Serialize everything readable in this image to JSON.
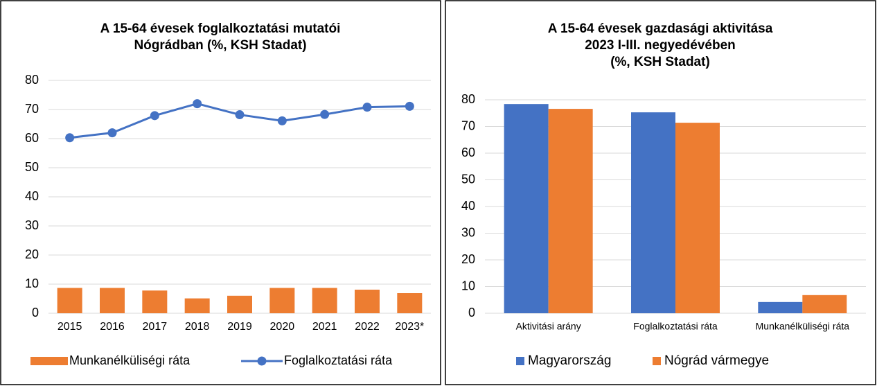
{
  "chart_data": [
    {
      "type": "combo",
      "title": [
        "A 15-64 évesek foglalkoztatási mutatói",
        "Nógrádban (%, KSH Stadat)"
      ],
      "categories": [
        "2015",
        "2016",
        "2017",
        "2018",
        "2019",
        "2020",
        "2021",
        "2022",
        "2023*"
      ],
      "series": [
        {
          "name": "Munkanélküliségi ráta",
          "type": "bar",
          "color": "#ed7d31",
          "values": [
            8.7,
            8.7,
            7.8,
            5.1,
            6.0,
            8.7,
            8.7,
            8.1,
            6.9
          ]
        },
        {
          "name": "Foglalkoztatási ráta",
          "type": "line",
          "color": "#4472c4",
          "values": [
            60.3,
            62.0,
            67.9,
            72.0,
            68.2,
            66.1,
            68.3,
            70.8,
            71.1
          ]
        }
      ],
      "ylim": [
        0,
        80
      ],
      "yticks": [
        0,
        10,
        20,
        30,
        40,
        50,
        60,
        70,
        80
      ],
      "grid": true,
      "legend": "bottom"
    },
    {
      "type": "bar",
      "title": [
        "A 15-64 évesek gazdasági aktivitása",
        "2023 I-III.  negyedévében",
        "(%, KSH Stadat)"
      ],
      "categories": [
        "Aktivitási arány",
        "Foglalkoztatási ráta",
        "Munkanélküliségi ráta"
      ],
      "series": [
        {
          "name": "Magyarország",
          "color": "#4472c4",
          "values": [
            78.4,
            75.3,
            4.2
          ]
        },
        {
          "name": "Nógrád vármegye",
          "color": "#ed7d31",
          "values": [
            76.6,
            71.4,
            6.8
          ]
        }
      ],
      "ylim": [
        0,
        80
      ],
      "yticks": [
        0,
        10,
        20,
        30,
        40,
        50,
        60,
        70,
        80
      ],
      "grid": true,
      "legend": "bottom"
    }
  ]
}
